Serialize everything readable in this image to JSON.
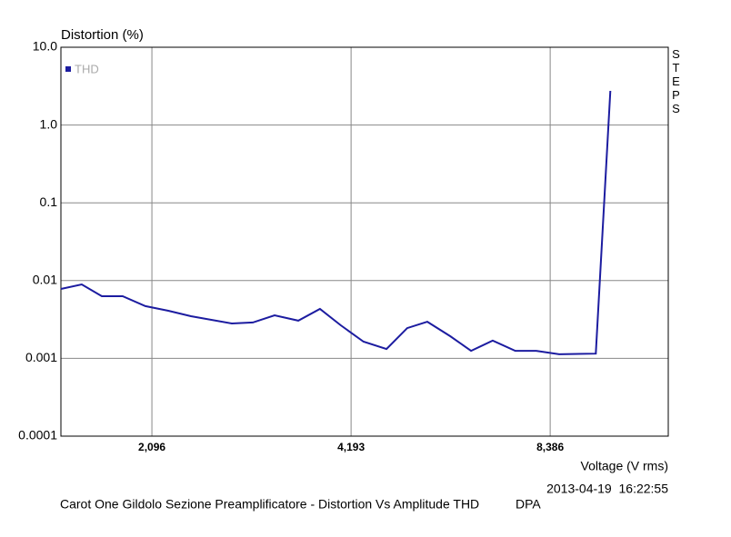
{
  "chart_data": {
    "type": "line",
    "title": "Carot One Gildolo Sezione Preamplificatore - Distortion Vs Amplitude THD",
    "source": "DPA",
    "timestamp": "2013-04-19  16:22:55",
    "side_label": "STEPS",
    "x_label": "Voltage (V rms)",
    "y_label": "Distortion (%)",
    "x": [
      1.527,
      1.642,
      1.761,
      1.893,
      2.049,
      2.219,
      2.401,
      2.769,
      2.979,
      3.213,
      3.489,
      3.762,
      4.045,
      4.379,
      4.743,
      5.099,
      5.468,
      5.922,
      6.366,
      6.865,
      7.429,
      7.988,
      8.653,
      9.831,
      10.34
    ],
    "series": [
      {
        "name": "THD",
        "color": "#1c1ca0",
        "values": [
          0.00781,
          0.00893,
          0.0063,
          0.0063,
          0.00469,
          0.00409,
          0.00348,
          0.00281,
          0.00289,
          0.00358,
          0.00305,
          0.00432,
          0.00266,
          0.00164,
          0.00132,
          0.00245,
          0.00296,
          0.00193,
          0.00125,
          0.00169,
          0.00125,
          0.00125,
          0.00113,
          0.00115,
          2.75
        ]
      }
    ],
    "xscale": "log",
    "yscale": "log",
    "xlim": [
      1.527,
      12.65
    ],
    "ylim": [
      0.0001,
      10
    ],
    "xticks": [
      {
        "value": 2.096,
        "label": "2,096"
      },
      {
        "value": 4.193,
        "label": "4,193"
      },
      {
        "value": 8.386,
        "label": "8,386"
      }
    ],
    "yticks": [
      {
        "value": 10,
        "label": "10.0"
      },
      {
        "value": 1,
        "label": "1.0"
      },
      0.1,
      0.01,
      0.001,
      0.0001
    ],
    "grid": true
  }
}
